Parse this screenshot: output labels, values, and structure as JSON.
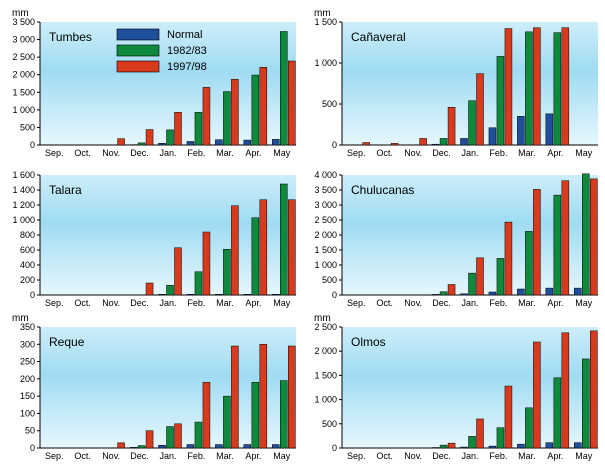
{
  "colors": {
    "normal": "#1f4e9c",
    "y1982": "#0f8a3c",
    "y1997": "#d83a1e",
    "panel_top": "#cdeefa",
    "panel_band": "#9fdbf2",
    "panel_bottom": "#e6f7fd"
  },
  "legend": {
    "entries": [
      {
        "label": "Normal",
        "color": "#1f4e9c"
      },
      {
        "label": "1982/83",
        "color": "#0f8a3c"
      },
      {
        "label": "1997/98",
        "color": "#d83a1e"
      }
    ]
  },
  "chart_data": [
    {
      "type": "bar",
      "title": "Tumbes",
      "ylabel": "mm",
      "ylim": [
        0,
        3500
      ],
      "yticks": [
        "0",
        "500",
        "1 000",
        "1 500",
        "2 000",
        "2 500",
        "3 000",
        "3 500"
      ],
      "ytick_values": [
        0,
        500,
        1000,
        1500,
        2000,
        2500,
        3000,
        3500
      ],
      "categories": [
        "Sep.",
        "Oct.",
        "Nov.",
        "Dec.",
        "Jan.",
        "Feb.",
        "Mar.",
        "Apr.",
        "May"
      ],
      "series": [
        {
          "name": "Normal",
          "values": [
            0,
            0,
            0,
            10,
            50,
            100,
            150,
            140,
            160
          ]
        },
        {
          "name": "1982/83",
          "values": [
            0,
            0,
            0,
            60,
            430,
            930,
            1520,
            1990,
            3230
          ]
        },
        {
          "name": "1997/98",
          "values": [
            0,
            0,
            180,
            440,
            930,
            1640,
            1870,
            2210,
            2390
          ]
        }
      ]
    },
    {
      "type": "bar",
      "title": "Cañaveral",
      "ylabel": "mm",
      "ylim": [
        0,
        1500
      ],
      "yticks": [
        "0",
        "500",
        "1 000",
        "1 500"
      ],
      "ytick_values": [
        0,
        500,
        1000,
        1500
      ],
      "categories": [
        "Sep.",
        "Oct.",
        "Nov.",
        "Dec.",
        "Jan.",
        "Feb.",
        "Mar.",
        "Apr.",
        "May"
      ],
      "series": [
        {
          "name": "Normal",
          "values": [
            0,
            0,
            0,
            10,
            80,
            210,
            350,
            380,
            0
          ]
        },
        {
          "name": "1982/83",
          "values": [
            0,
            0,
            0,
            80,
            540,
            1080,
            1380,
            1370,
            0
          ]
        },
        {
          "name": "1997/98",
          "values": [
            30,
            20,
            80,
            460,
            870,
            1420,
            1430,
            1430,
            0
          ]
        }
      ]
    },
    {
      "type": "bar",
      "title": "Talara",
      "ylabel": "",
      "ylim": [
        0,
        1600
      ],
      "yticks": [
        "0",
        "200",
        "400",
        "600",
        "800",
        "1 000",
        "1 200",
        "1 400",
        "1 600"
      ],
      "ytick_values": [
        0,
        200,
        400,
        600,
        800,
        1000,
        1200,
        1400,
        1600
      ],
      "categories": [
        "Sep.",
        "Oct.",
        "Nov.",
        "Dec.",
        "Jan.",
        "Feb.",
        "Mar.",
        "Apr.",
        "May"
      ],
      "series": [
        {
          "name": "Normal",
          "values": [
            0,
            0,
            0,
            0,
            10,
            10,
            10,
            10,
            10
          ]
        },
        {
          "name": "1982/83",
          "values": [
            0,
            0,
            0,
            0,
            130,
            310,
            610,
            1030,
            1480
          ]
        },
        {
          "name": "1997/98",
          "values": [
            0,
            0,
            0,
            160,
            630,
            840,
            1190,
            1270,
            1270
          ]
        }
      ]
    },
    {
      "type": "bar",
      "title": "Chulucanas",
      "ylabel": "",
      "ylim": [
        0,
        4000
      ],
      "yticks": [
        "0",
        "500",
        "1 000",
        "1 500",
        "2 000",
        "2 500",
        "3 000",
        "3 500",
        "4 000"
      ],
      "ytick_values": [
        0,
        500,
        1000,
        1500,
        2000,
        2500,
        3000,
        3500,
        4000
      ],
      "categories": [
        "Sep.",
        "Oct.",
        "Nov.",
        "Dec.",
        "Jan.",
        "Feb.",
        "Mar.",
        "Apr.",
        "May"
      ],
      "series": [
        {
          "name": "Normal",
          "values": [
            0,
            0,
            0,
            20,
            40,
            100,
            200,
            230,
            230
          ]
        },
        {
          "name": "1982/83",
          "values": [
            0,
            0,
            0,
            110,
            730,
            1220,
            2120,
            3330,
            4040
          ]
        },
        {
          "name": "1997/98",
          "values": [
            0,
            0,
            0,
            350,
            1240,
            2430,
            3520,
            3810,
            3870
          ]
        }
      ]
    },
    {
      "type": "bar",
      "title": "Reque",
      "ylabel": "mm",
      "ylim": [
        0,
        350
      ],
      "yticks": [
        "0",
        "50",
        "100",
        "150",
        "200",
        "250",
        "300",
        "350"
      ],
      "ytick_values": [
        0,
        50,
        100,
        150,
        200,
        250,
        300,
        350
      ],
      "categories": [
        "Sep.",
        "Oct.",
        "Nov.",
        "Dec.",
        "Jan.",
        "Feb.",
        "Mar.",
        "Apr.",
        "May"
      ],
      "series": [
        {
          "name": "Normal",
          "values": [
            0,
            0,
            0,
            2,
            8,
            10,
            10,
            10,
            10
          ]
        },
        {
          "name": "1982/83",
          "values": [
            0,
            0,
            0,
            7,
            62,
            75,
            150,
            190,
            195
          ]
        },
        {
          "name": "1997/98",
          "values": [
            0,
            0,
            15,
            50,
            70,
            190,
            295,
            300,
            295
          ]
        }
      ]
    },
    {
      "type": "bar",
      "title": "Olmos",
      "ylabel": "mm",
      "ylim": [
        0,
        2500
      ],
      "yticks": [
        "0",
        "500",
        "1 000",
        "1 500",
        "2 000",
        "2 500"
      ],
      "ytick_values": [
        0,
        500,
        1000,
        1500,
        2000,
        2500
      ],
      "categories": [
        "Sep.",
        "Oct.",
        "Nov.",
        "Dec.",
        "Jan.",
        "Feb.",
        "Mar.",
        "Apr.",
        "May"
      ],
      "series": [
        {
          "name": "Normal",
          "values": [
            0,
            0,
            0,
            10,
            20,
            40,
            80,
            110,
            110
          ]
        },
        {
          "name": "1982/83",
          "values": [
            0,
            0,
            0,
            60,
            240,
            420,
            830,
            1450,
            1840
          ]
        },
        {
          "name": "1997/98",
          "values": [
            0,
            0,
            0,
            100,
            600,
            1280,
            2190,
            2380,
            2420
          ]
        }
      ]
    }
  ]
}
